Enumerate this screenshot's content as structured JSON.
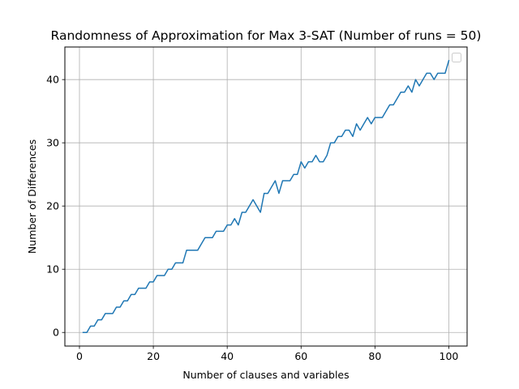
{
  "chart_data": {
    "type": "line",
    "title": "Randomness of Approximation for Max 3-SAT (Number of runs = 50)",
    "xlabel": "Number of clauses and variables",
    "ylabel": "Number of Differences",
    "xlim": [
      -3.95,
      104.95
    ],
    "ylim": [
      -2.15,
      45.15
    ],
    "xticks": [
      0,
      20,
      40,
      60,
      80,
      100
    ],
    "yticks": [
      0,
      10,
      20,
      30,
      40
    ],
    "grid": true,
    "legend": "top-right",
    "series": [
      {
        "color": "#1f77b4",
        "x": [
          1,
          2,
          3,
          4,
          5,
          6,
          7,
          8,
          9,
          10,
          11,
          12,
          13,
          14,
          15,
          16,
          17,
          18,
          19,
          20,
          21,
          22,
          23,
          24,
          25,
          26,
          27,
          28,
          29,
          30,
          31,
          32,
          33,
          34,
          35,
          36,
          37,
          38,
          39,
          40,
          41,
          42,
          43,
          44,
          45,
          46,
          47,
          48,
          49,
          50,
          51,
          52,
          53,
          54,
          55,
          56,
          57,
          58,
          59,
          60,
          61,
          62,
          63,
          64,
          65,
          66,
          67,
          68,
          69,
          70,
          71,
          72,
          73,
          74,
          75,
          76,
          77,
          78,
          79,
          80,
          81,
          82,
          83,
          84,
          85,
          86,
          87,
          88,
          89,
          90,
          91,
          92,
          93,
          94,
          95,
          96,
          97,
          98,
          99,
          100
        ],
        "y": [
          0,
          0,
          1,
          1,
          2,
          2,
          3,
          3,
          3,
          4,
          4,
          5,
          5,
          6,
          6,
          7,
          7,
          7,
          8,
          8,
          9,
          9,
          9,
          10,
          10,
          11,
          11,
          11,
          13,
          13,
          13,
          13,
          14,
          15,
          15,
          15,
          16,
          16,
          16,
          17,
          17,
          18,
          17,
          19,
          19,
          20,
          21,
          20,
          19,
          22,
          22,
          23,
          24,
          22,
          24,
          24,
          24,
          25,
          25,
          27,
          26,
          27,
          27,
          28,
          27,
          27,
          28,
          30,
          30,
          31,
          31,
          32,
          32,
          31,
          33,
          32,
          33,
          34,
          33,
          34,
          34,
          34,
          35,
          36,
          36,
          37,
          38,
          38,
          39,
          38,
          40,
          39,
          40,
          41,
          41,
          40,
          41,
          41,
          41,
          43
        ]
      }
    ]
  }
}
